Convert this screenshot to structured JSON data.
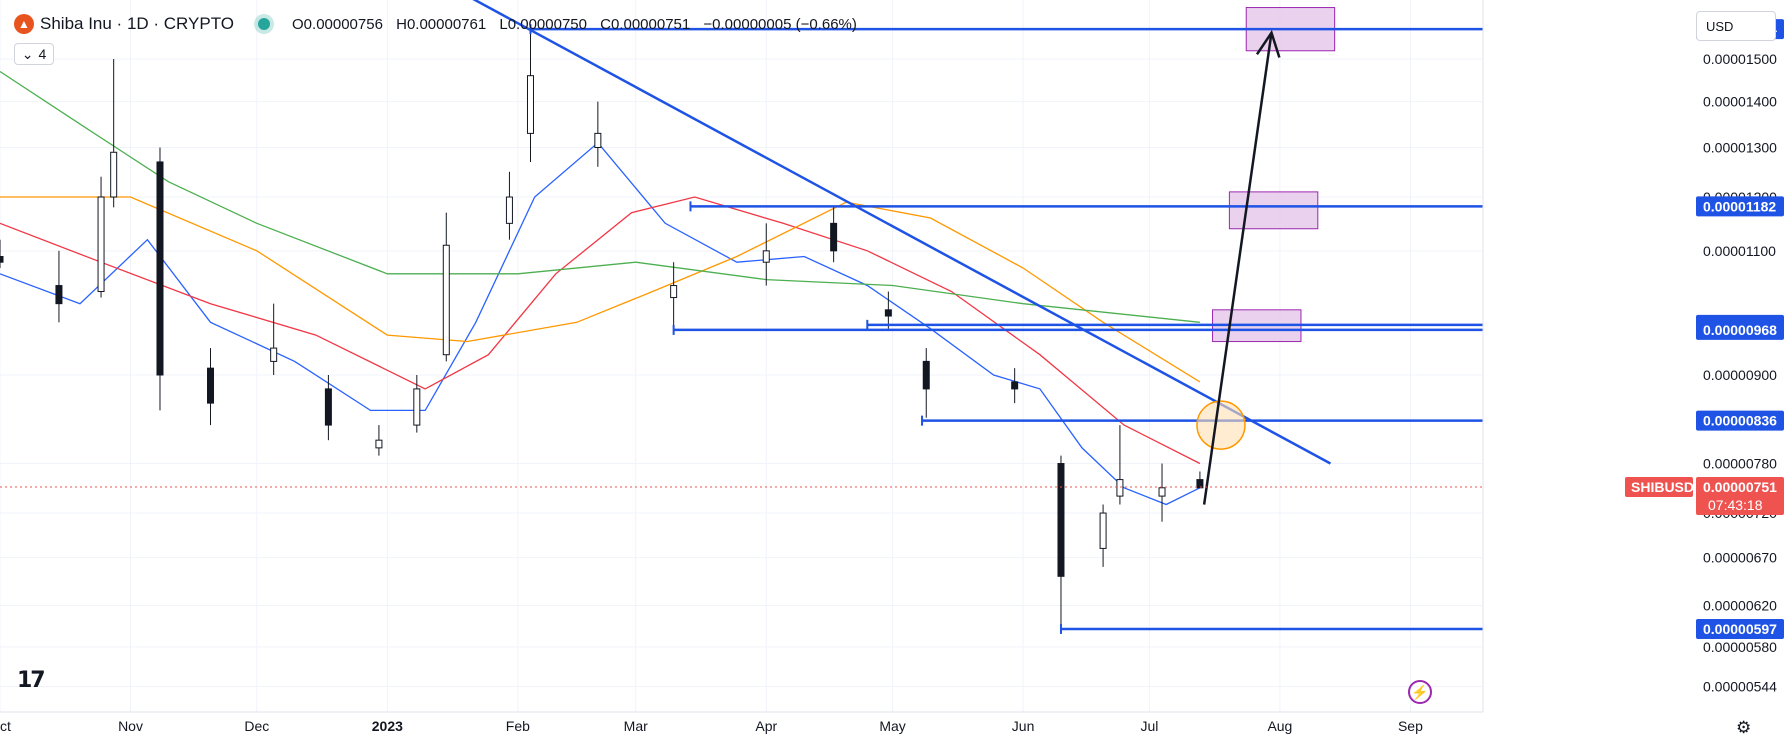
{
  "header": {
    "symbol_title": "Shiba Inu · 1D · CRYPTO",
    "logo_icon": "shiba-logo-icon",
    "open": "O0.00000756",
    "high": "H0.00000761",
    "low": "L0.00000750",
    "close": "C0.00000751",
    "change": "−0.00000005 (−0.66%)",
    "indicator_count": "4"
  },
  "currency": "USD",
  "ticker_label": "SHIBUSD",
  "colors": {
    "up": "#26a69a",
    "down": "#ef5350",
    "candle": "#131722",
    "ma_blue": "#2962ff",
    "ma_red": "#f23645",
    "ma_orange": "#ff9800",
    "ma_green": "#4caf50",
    "drawing": "#1e53e5",
    "zone": "#e1bee7"
  },
  "chart_data": {
    "type": "candlestick",
    "title": "Shiba Inu · 1D · CRYPTO",
    "x_range": [
      "2022-10-01",
      "2023-09-18"
    ],
    "ylim": [
      5.22e-06,
      1.65e-05
    ],
    "y_scale": "log",
    "x_ticks": [
      "Oct",
      "Nov",
      "Dec",
      "2023",
      "Feb",
      "Mar",
      "Apr",
      "May",
      "Jun",
      "Jul",
      "Aug",
      "Sep"
    ],
    "y_ticks": [
      "0.00001500",
      "0.00001400",
      "0.00001300",
      "0.00001200",
      "0.00001100",
      "0.00000900",
      "0.00000780",
      "0.00000720",
      "0.00000670",
      "0.00000620",
      "0.00000580",
      "0.00000544"
    ],
    "last_price": "0.00000751",
    "countdown": "07:43:18",
    "price_levels": [
      {
        "label": "0.00001574",
        "value": 1.574e-05,
        "from": "2023-02-04"
      },
      {
        "label": "0.00001182",
        "value": 1.182e-05,
        "from": "2023-03-14"
      },
      {
        "label": "0.00000976",
        "value": 9.76e-06,
        "from": "2023-04-25"
      },
      {
        "label": "0.00000968",
        "value": 9.68e-06,
        "from": "2023-03-10"
      },
      {
        "label": "0.00000836",
        "value": 8.36e-06,
        "from": "2023-05-08"
      },
      {
        "label": "0.00000597",
        "value": 5.97e-06,
        "from": "2023-06-10"
      }
    ],
    "trendline": [
      [
        "2022-12-16",
        1.89e-05
      ],
      [
        "2023-08-13",
        7.8e-06
      ]
    ],
    "target_zones": [
      {
        "x0": "2023-07-24",
        "x1": "2023-08-14",
        "y0": 1.52e-05,
        "y1": 1.63e-05
      },
      {
        "x0": "2023-07-20",
        "x1": "2023-08-10",
        "y0": 1.14e-05,
        "y1": 1.21e-05
      },
      {
        "x0": "2023-07-16",
        "x1": "2023-08-06",
        "y0": 9.5e-06,
        "y1": 1e-05
      }
    ],
    "breakout_circle": {
      "x": "2023-07-18",
      "y": 8.3e-06
    },
    "projection_arrow": [
      [
        "2023-07-14",
        7.3e-06
      ],
      [
        "2023-07-30",
        1.565e-05
      ]
    ],
    "ohlc_series": [
      [
        "2022-10-01",
        1.09e-05,
        1.12e-05,
        1.07e-05,
        1.08e-05
      ],
      [
        "2022-10-15",
        1.04e-05,
        1.1e-05,
        9.8e-06,
        1.01e-05
      ],
      [
        "2022-10-25",
        1.03e-05,
        1.24e-05,
        1.02e-05,
        1.2e-05
      ],
      [
        "2022-10-28",
        1.2e-05,
        1.5e-05,
        1.18e-05,
        1.29e-05
      ],
      [
        "2022-11-08",
        1.27e-05,
        1.3e-05,
        8.5e-06,
        9e-06
      ],
      [
        "2022-11-20",
        9.1e-06,
        9.4e-06,
        8.3e-06,
        8.6e-06
      ],
      [
        "2022-12-05",
        9.2e-06,
        1.01e-05,
        9e-06,
        9.4e-06
      ],
      [
        "2022-12-18",
        8.8e-06,
        9e-06,
        8.1e-06,
        8.3e-06
      ],
      [
        "2022-12-30",
        8e-06,
        8.3e-06,
        7.9e-06,
        8.1e-06
      ],
      [
        "2023-01-08",
        8.3e-06,
        9e-06,
        8.2e-06,
        8.8e-06
      ],
      [
        "2023-01-15",
        9.3e-06,
        1.17e-05,
        9.2e-06,
        1.11e-05
      ],
      [
        "2023-01-30",
        1.15e-05,
        1.25e-05,
        1.12e-05,
        1.2e-05
      ],
      [
        "2023-02-04",
        1.33e-05,
        1.57e-05,
        1.27e-05,
        1.46e-05
      ],
      [
        "2023-02-20",
        1.3e-05,
        1.4e-05,
        1.26e-05,
        1.33e-05
      ],
      [
        "2023-03-10",
        1.02e-05,
        1.08e-05,
        9.7e-06,
        1.04e-05
      ],
      [
        "2023-04-01",
        1.08e-05,
        1.15e-05,
        1.04e-05,
        1.1e-05
      ],
      [
        "2023-04-17",
        1.15e-05,
        1.18e-05,
        1.08e-05,
        1.1e-05
      ],
      [
        "2023-04-30",
        1e-05,
        1.03e-05,
        9.7e-06,
        9.9e-06
      ],
      [
        "2023-05-09",
        9.2e-06,
        9.4e-06,
        8.4e-06,
        8.8e-06
      ],
      [
        "2023-05-30",
        8.9e-06,
        9.1e-06,
        8.6e-06,
        8.8e-06
      ],
      [
        "2023-06-10",
        7.8e-06,
        7.9e-06,
        6e-06,
        6.5e-06
      ],
      [
        "2023-06-20",
        6.8e-06,
        7.3e-06,
        6.6e-06,
        7.2e-06
      ],
      [
        "2023-06-24",
        7.4e-06,
        8.3e-06,
        7.3e-06,
        7.6e-06
      ],
      [
        "2023-07-04",
        7.4e-06,
        7.8e-06,
        7.1e-06,
        7.5e-06
      ],
      [
        "2023-07-13",
        7.6e-06,
        7.7e-06,
        7.5e-06,
        7.5e-06
      ]
    ],
    "moving_averages": [
      {
        "color": "blue",
        "points": [
          [
            "2022-10-01",
            1.06e-05
          ],
          [
            "2022-10-20",
            1.01e-05
          ],
          [
            "2022-11-05",
            1.12e-05
          ],
          [
            "2022-11-20",
            9.8e-06
          ],
          [
            "2022-12-10",
            9.2e-06
          ],
          [
            "2022-12-28",
            8.5e-06
          ],
          [
            "2023-01-10",
            8.5e-06
          ],
          [
            "2023-01-22",
            9.8e-06
          ],
          [
            "2023-02-05",
            1.2e-05
          ],
          [
            "2023-02-20",
            1.31e-05
          ],
          [
            "2023-03-08",
            1.15e-05
          ],
          [
            "2023-03-25",
            1.08e-05
          ],
          [
            "2023-04-10",
            1.09e-05
          ],
          [
            "2023-04-25",
            1.04e-05
          ],
          [
            "2023-05-10",
            9.7e-06
          ],
          [
            "2023-05-25",
            9e-06
          ],
          [
            "2023-06-05",
            8.8e-06
          ],
          [
            "2023-06-15",
            8e-06
          ],
          [
            "2023-06-25",
            7.5e-06
          ],
          [
            "2023-07-05",
            7.3e-06
          ],
          [
            "2023-07-13",
            7.5e-06
          ]
        ]
      },
      {
        "color": "red",
        "points": [
          [
            "2022-10-01",
            1.15e-05
          ],
          [
            "2022-10-25",
            1.08e-05
          ],
          [
            "2022-11-20",
            1.01e-05
          ],
          [
            "2022-12-15",
            9.6e-06
          ],
          [
            "2023-01-10",
            8.8e-06
          ],
          [
            "2023-01-25",
            9.3e-06
          ],
          [
            "2023-02-10",
            1.06e-05
          ],
          [
            "2023-02-28",
            1.17e-05
          ],
          [
            "2023-03-15",
            1.2e-05
          ],
          [
            "2023-04-05",
            1.15e-05
          ],
          [
            "2023-04-25",
            1.1e-05
          ],
          [
            "2023-05-15",
            1.03e-05
          ],
          [
            "2023-06-05",
            9.3e-06
          ],
          [
            "2023-06-25",
            8.3e-06
          ],
          [
            "2023-07-13",
            7.8e-06
          ]
        ]
      },
      {
        "color": "orange",
        "points": [
          [
            "2022-10-01",
            1.2e-05
          ],
          [
            "2022-11-01",
            1.2e-05
          ],
          [
            "2022-12-01",
            1.1e-05
          ],
          [
            "2023-01-01",
            9.6e-06
          ],
          [
            "2023-01-20",
            9.5e-06
          ],
          [
            "2023-02-15",
            9.8e-06
          ],
          [
            "2023-03-05",
            1.03e-05
          ],
          [
            "2023-03-25",
            1.09e-05
          ],
          [
            "2023-04-20",
            1.19e-05
          ],
          [
            "2023-05-10",
            1.16e-05
          ],
          [
            "2023-06-01",
            1.07e-05
          ],
          [
            "2023-06-20",
            9.8e-06
          ],
          [
            "2023-07-13",
            8.9e-06
          ]
        ]
      },
      {
        "color": "green",
        "points": [
          [
            "2022-10-01",
            1.47e-05
          ],
          [
            "2022-10-20",
            1.35e-05
          ],
          [
            "2022-11-10",
            1.23e-05
          ],
          [
            "2022-12-01",
            1.15e-05
          ],
          [
            "2023-01-01",
            1.06e-05
          ],
          [
            "2023-02-01",
            1.06e-05
          ],
          [
            "2023-03-01",
            1.08e-05
          ],
          [
            "2023-04-01",
            1.05e-05
          ],
          [
            "2023-05-01",
            1.04e-05
          ],
          [
            "2023-06-01",
            1.01e-05
          ],
          [
            "2023-07-13",
            9.8e-06
          ]
        ]
      }
    ]
  }
}
